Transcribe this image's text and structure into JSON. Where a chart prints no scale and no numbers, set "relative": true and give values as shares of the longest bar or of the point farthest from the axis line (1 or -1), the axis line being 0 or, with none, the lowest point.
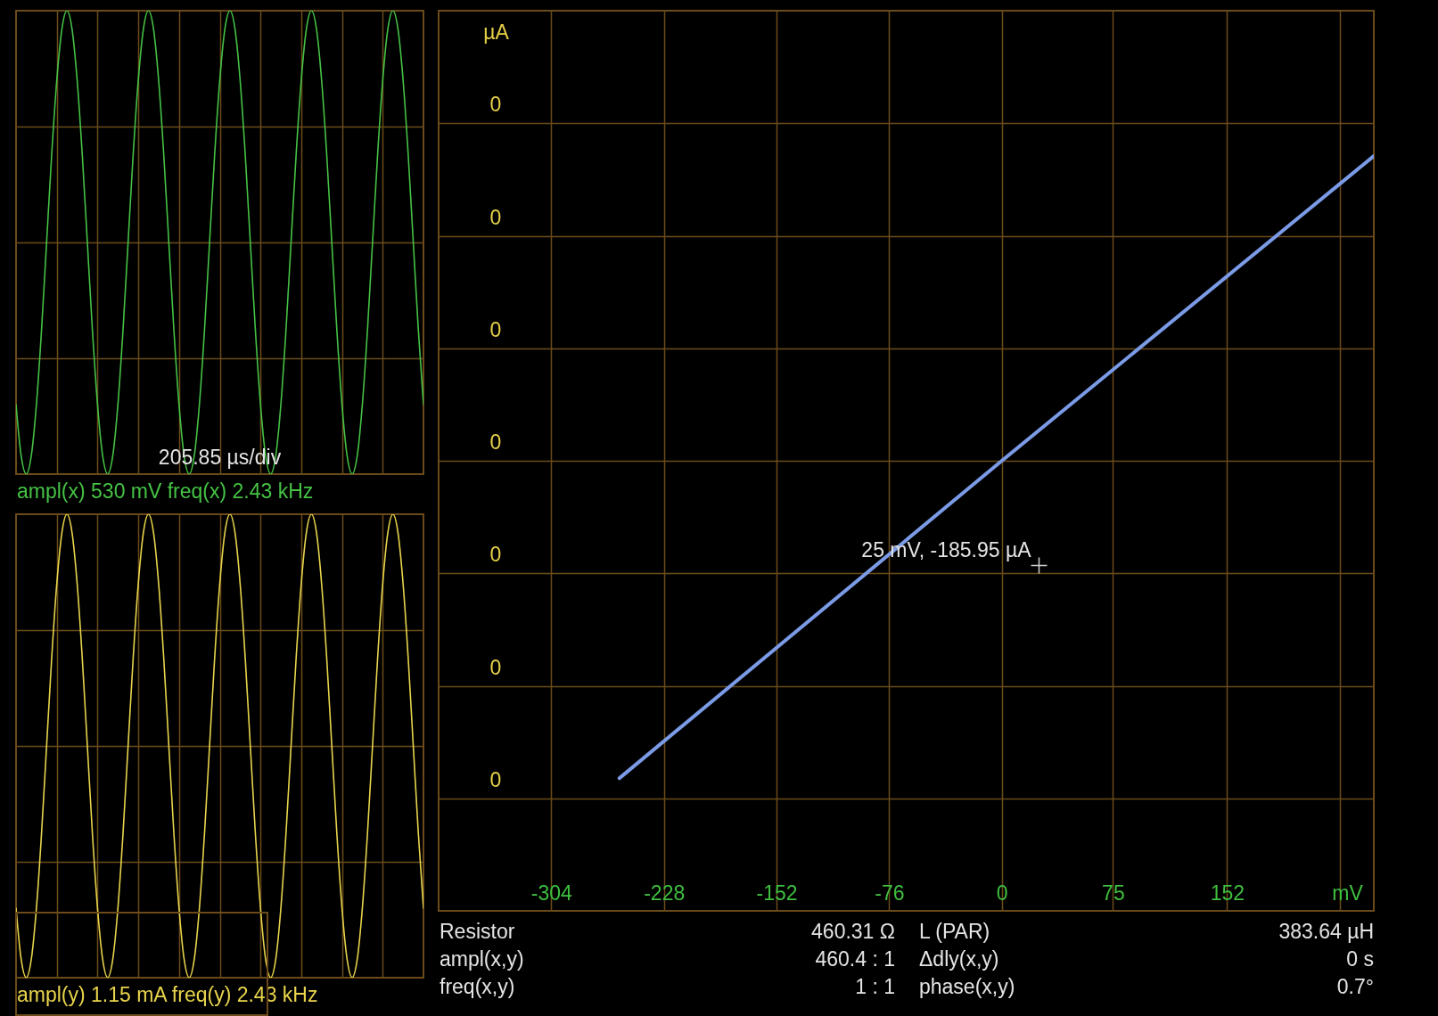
{
  "chart_data": [
    {
      "type": "line",
      "categories": [
        null,
        null,
        null,
        null,
        null,
        null,
        null,
        null,
        null,
        null,
        null,
        null,
        null,
        null,
        null,
        null,
        null,
        null,
        null,
        null,
        null,
        null,
        null,
        null,
        null,
        null,
        null,
        null,
        null,
        null,
        null,
        null,
        null,
        null,
        null,
        null,
        null,
        null,
        null,
        null,
        null,
        null,
        null,
        null,
        null,
        null,
        null,
        null,
        null,
        null,
        null,
        null,
        null,
        null,
        null,
        null,
        null,
        null,
        null,
        null,
        null,
        null,
        null,
        null,
        null,
        null,
        null,
        null,
        null,
        null,
        null,
        null,
        null,
        null,
        null,
        null,
        null,
        null,
        null,
        null,
        null
      ],
      "series": [
        {
          "color": "#45c245",
          "values": [
            0.15,
            0.04,
            0,
            0.04,
            0.15,
            0.31,
            0.5,
            0.69,
            0.85,
            0.96,
            1,
            0.96,
            0.85,
            0.69,
            0.5,
            0.31,
            0.15,
            0.04,
            0,
            0.04,
            0.15,
            0.31,
            0.5,
            0.69,
            0.85,
            0.96,
            1,
            0.96,
            0.85,
            0.69,
            0.5,
            0.31,
            0.15,
            0.04,
            0,
            0.04,
            0.15,
            0.31,
            0.5,
            0.69,
            0.85,
            0.96,
            1,
            0.96,
            0.85,
            0.69,
            0.5,
            0.31,
            0.15,
            0.04,
            0,
            0.04,
            0.15,
            0.31,
            0.5,
            0.69,
            0.85,
            0.96,
            1,
            0.96,
            0.85,
            0.69,
            0.5,
            0.31,
            0.15,
            0.04,
            0,
            0.04,
            0.15,
            0.31,
            0.5,
            0.69,
            0.85,
            0.96,
            1,
            0.96,
            0.85,
            0.69,
            0.5,
            0.31,
            0.15
          ]
        }
      ],
      "relative": true,
      "grid": true,
      "annotations": [
        "205.85 µs/div",
        "ampl(x) 530 mV  freq(x) 2.43 kHz"
      ]
    },
    {
      "type": "line",
      "categories": [
        null,
        null,
        null,
        null,
        null,
        null,
        null,
        null,
        null,
        null,
        null,
        null,
        null,
        null,
        null,
        null,
        null,
        null,
        null,
        null,
        null,
        null,
        null,
        null,
        null,
        null,
        null,
        null,
        null,
        null,
        null,
        null,
        null,
        null,
        null,
        null,
        null,
        null,
        null,
        null,
        null,
        null,
        null,
        null,
        null,
        null,
        null,
        null,
        null,
        null,
        null,
        null,
        null,
        null,
        null,
        null,
        null,
        null,
        null,
        null,
        null,
        null,
        null,
        null,
        null,
        null,
        null,
        null,
        null,
        null,
        null,
        null,
        null,
        null,
        null,
        null,
        null,
        null,
        null,
        null,
        null
      ],
      "series": [
        {
          "color": "#e8d44c",
          "values": [
            0.15,
            0.04,
            0,
            0.04,
            0.15,
            0.31,
            0.5,
            0.69,
            0.85,
            0.96,
            1,
            0.96,
            0.85,
            0.69,
            0.5,
            0.31,
            0.15,
            0.04,
            0,
            0.04,
            0.15,
            0.31,
            0.5,
            0.69,
            0.85,
            0.96,
            1,
            0.96,
            0.85,
            0.69,
            0.5,
            0.31,
            0.15,
            0.04,
            0,
            0.04,
            0.15,
            0.31,
            0.5,
            0.69,
            0.85,
            0.96,
            1,
            0.96,
            0.85,
            0.69,
            0.5,
            0.31,
            0.15,
            0.04,
            0,
            0.04,
            0.15,
            0.31,
            0.5,
            0.69,
            0.85,
            0.96,
            1,
            0.96,
            0.85,
            0.69,
            0.5,
            0.31,
            0.15,
            0.04,
            0,
            0.04,
            0.15,
            0.31,
            0.5,
            0.69,
            0.85,
            0.96,
            1,
            0.96,
            0.85,
            0.69,
            0.5,
            0.31,
            0.15
          ]
        }
      ],
      "relative": true,
      "grid": true,
      "annotations": [
        "ampl(y) 1.15 mA  freq(y) 2.43 kHz"
      ]
    },
    {
      "type": "line",
      "x": [
        -258,
        0,
        251
      ],
      "series": [
        {
          "color": "#7b9be6",
          "values": [
            -1,
            0,
            0.96
          ]
        }
      ],
      "relative": true,
      "xlim": [
        -380,
        251
      ],
      "xticks": [
        -304,
        -228,
        -152,
        -76,
        0,
        75,
        152,
        {
          "value": 228,
          "label": null
        }
      ],
      "xlabel": "mV",
      "ylabel": "µA",
      "grid": true,
      "annotations": [
        "0",
        "0",
        "0",
        "0",
        "0",
        "0",
        "0",
        "25 mV, -185.95 µA"
      ]
    },
    {
      "type": "other",
      "annotations": [
        "Resistor",
        "460.31 Ω",
        "L (PAR)",
        "383.64 µH",
        "ampl(x,y)",
        "460.4 : 1",
        "Δdly(x,y)",
        "0 s",
        "freq(x,y)",
        "1 : 1",
        "phase(x,y)",
        "0.7°"
      ]
    }
  ]
}
